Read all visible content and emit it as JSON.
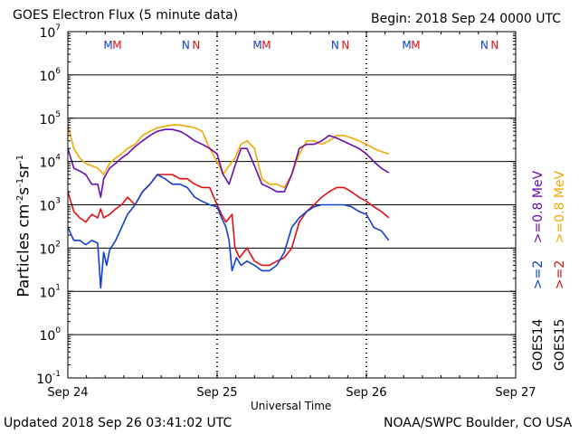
{
  "header": {
    "title": "GOES Electron Flux (5 minute data)",
    "begin": "Begin: 2018 Sep 24 0000 UTC"
  },
  "footer": {
    "updated": "Updated 2018 Sep 26 03:41:02 UTC",
    "credit": "NOAA/SWPC Boulder, CO USA"
  },
  "legend": {
    "goes14": "GOES14",
    "goes15": "GOES15",
    "g14_low": ">=0.8 MeV",
    "g14_high": ">=2",
    "g15_low": ">=0.8 MeV",
    "g15_high": ">=2"
  },
  "colors": {
    "g14_low": "#6a0dad",
    "g15_low": "#f0a800",
    "g14_high": "#1040d0",
    "g15_high": "#e01010",
    "m_marker": "#1040d0",
    "m_marker2": "#e01010"
  },
  "chart_data": {
    "type": "line",
    "title": "GOES Electron Flux (5 minute data)",
    "xlabel": "Universal Time",
    "ylabel": "Particles cm-2 s-1 sr-1",
    "yscale": "log",
    "ylim": [
      0.1,
      10000000
    ],
    "xlim": [
      0,
      3
    ],
    "x_ticks": [
      {
        "x": 0,
        "label": "Sep 24"
      },
      {
        "x": 1,
        "label": "Sep 25"
      },
      {
        "x": 2,
        "label": "Sep 26"
      },
      {
        "x": 3,
        "label": "Sep 27"
      }
    ],
    "y_ticks": [
      {
        "exp": 7,
        "label": "10",
        "sup": "7"
      },
      {
        "exp": 6,
        "label": "10",
        "sup": "6"
      },
      {
        "exp": 5,
        "label": "10",
        "sup": "5"
      },
      {
        "exp": 4,
        "label": "10",
        "sup": "4"
      },
      {
        "exp": 3,
        "label": "10",
        "sup": "3"
      },
      {
        "exp": 2,
        "label": "10",
        "sup": "2"
      },
      {
        "exp": 1,
        "label": "10",
        "sup": "1"
      },
      {
        "exp": 0,
        "label": "10",
        "sup": "0"
      },
      {
        "exp": -1,
        "label": "10",
        "sup": "-1"
      }
    ],
    "threshold": 1000,
    "markers": [
      {
        "x": 0.27,
        "label": "M",
        "sat": "GOES14"
      },
      {
        "x": 0.33,
        "label": "M",
        "sat": "GOES15"
      },
      {
        "x": 0.79,
        "label": "N",
        "sat": "GOES14"
      },
      {
        "x": 0.86,
        "label": "N",
        "sat": "GOES15"
      },
      {
        "x": 1.27,
        "label": "M",
        "sat": "GOES14"
      },
      {
        "x": 1.33,
        "label": "M",
        "sat": "GOES15"
      },
      {
        "x": 1.79,
        "label": "N",
        "sat": "GOES14"
      },
      {
        "x": 1.86,
        "label": "N",
        "sat": "GOES15"
      },
      {
        "x": 2.27,
        "label": "M",
        "sat": "GOES14"
      },
      {
        "x": 2.33,
        "label": "M",
        "sat": "GOES15"
      },
      {
        "x": 2.79,
        "label": "N",
        "sat": "GOES14"
      },
      {
        "x": 2.86,
        "label": "N",
        "sat": "GOES15"
      }
    ],
    "series": [
      {
        "name": "GOES15 >=0.8 MeV",
        "color": "#f0a800",
        "x": [
          0.0,
          0.04,
          0.08,
          0.12,
          0.16,
          0.2,
          0.24,
          0.28,
          0.32,
          0.36,
          0.4,
          0.45,
          0.5,
          0.55,
          0.6,
          0.65,
          0.7,
          0.75,
          0.8,
          0.85,
          0.9,
          0.95,
          1.0,
          1.04,
          1.08,
          1.12,
          1.16,
          1.2,
          1.25,
          1.3,
          1.35,
          1.4,
          1.45,
          1.5,
          1.55,
          1.6,
          1.65,
          1.7,
          1.75,
          1.8,
          1.85,
          1.9,
          1.95,
          2.0,
          2.05,
          2.1,
          2.15
        ],
        "y": [
          70000,
          20000,
          12000,
          9000,
          8000,
          7000,
          5000,
          9000,
          12000,
          15000,
          20000,
          25000,
          40000,
          50000,
          60000,
          65000,
          70000,
          70000,
          65000,
          60000,
          50000,
          20000,
          10000,
          5000,
          8000,
          12000,
          25000,
          30000,
          20000,
          4000,
          3000,
          3000,
          2500,
          5000,
          15000,
          30000,
          30000,
          25000,
          30000,
          40000,
          40000,
          35000,
          30000,
          25000,
          20000,
          17000,
          15000
        ]
      },
      {
        "name": "GOES14 >=0.8 MeV",
        "color": "#6a0dad",
        "x": [
          0.0,
          0.04,
          0.08,
          0.12,
          0.16,
          0.2,
          0.22,
          0.24,
          0.28,
          0.32,
          0.36,
          0.4,
          0.45,
          0.5,
          0.55,
          0.6,
          0.65,
          0.7,
          0.75,
          0.8,
          0.85,
          0.9,
          0.95,
          1.0,
          1.04,
          1.08,
          1.12,
          1.16,
          1.2,
          1.25,
          1.3,
          1.35,
          1.4,
          1.45,
          1.5,
          1.55,
          1.6,
          1.65,
          1.7,
          1.75,
          1.8,
          1.95,
          2.0,
          2.05,
          2.1,
          2.15
        ],
        "y": [
          20000,
          7000,
          6000,
          5000,
          3000,
          3000,
          1500,
          4000,
          7000,
          9000,
          12000,
          15000,
          22000,
          30000,
          40000,
          50000,
          55000,
          55000,
          50000,
          40000,
          30000,
          25000,
          20000,
          15000,
          5000,
          3000,
          8000,
          20000,
          20000,
          8000,
          3000,
          2500,
          2000,
          2000,
          5000,
          20000,
          25000,
          25000,
          30000,
          40000,
          35000,
          20000,
          15000,
          10000,
          7000,
          5500
        ]
      },
      {
        "name": "GOES15 >=2 MeV",
        "color": "#e01010",
        "x": [
          0.0,
          0.04,
          0.08,
          0.12,
          0.16,
          0.2,
          0.22,
          0.24,
          0.28,
          0.32,
          0.36,
          0.4,
          0.45,
          0.5,
          0.55,
          0.6,
          0.65,
          0.7,
          0.75,
          0.8,
          0.85,
          0.9,
          0.95,
          1.0,
          1.03,
          1.06,
          1.1,
          1.12,
          1.15,
          1.2,
          1.25,
          1.3,
          1.35,
          1.4,
          1.45,
          1.5,
          1.55,
          1.6,
          1.65,
          1.7,
          1.75,
          1.8,
          1.85,
          1.9,
          1.95,
          2.0,
          2.05,
          2.1,
          2.15
        ],
        "y": [
          2000,
          700,
          500,
          400,
          600,
          500,
          800,
          500,
          600,
          800,
          1000,
          1500,
          1000,
          2000,
          3000,
          5000,
          5000,
          5000,
          4000,
          4000,
          3000,
          2500,
          2500,
          1000,
          600,
          400,
          600,
          100,
          60,
          100,
          50,
          40,
          40,
          50,
          60,
          100,
          400,
          700,
          1000,
          1500,
          2000,
          2500,
          2500,
          2000,
          1500,
          1200,
          900,
          700,
          500
        ]
      },
      {
        "name": "GOES14 >=2 MeV",
        "color": "#1040d0",
        "x": [
          0.0,
          0.04,
          0.08,
          0.12,
          0.16,
          0.2,
          0.22,
          0.24,
          0.26,
          0.28,
          0.32,
          0.36,
          0.4,
          0.45,
          0.5,
          0.55,
          0.6,
          0.65,
          0.7,
          0.75,
          0.8,
          0.85,
          0.9,
          0.95,
          1.0,
          1.03,
          1.06,
          1.08,
          1.1,
          1.13,
          1.16,
          1.2,
          1.25,
          1.3,
          1.35,
          1.4,
          1.45,
          1.5,
          1.55,
          1.6,
          1.65,
          1.7,
          1.75,
          1.8,
          1.85,
          1.9,
          1.95,
          2.0,
          2.05,
          2.1,
          2.15
        ],
        "y": [
          300,
          150,
          150,
          120,
          150,
          130,
          12,
          80,
          40,
          90,
          150,
          300,
          600,
          1000,
          2000,
          3000,
          5000,
          4000,
          3000,
          3000,
          2500,
          1500,
          1200,
          1000,
          900,
          500,
          300,
          150,
          30,
          60,
          40,
          50,
          40,
          30,
          30,
          40,
          80,
          300,
          500,
          700,
          900,
          1000,
          1000,
          1000,
          1000,
          900,
          700,
          600,
          300,
          250,
          150
        ]
      }
    ]
  }
}
